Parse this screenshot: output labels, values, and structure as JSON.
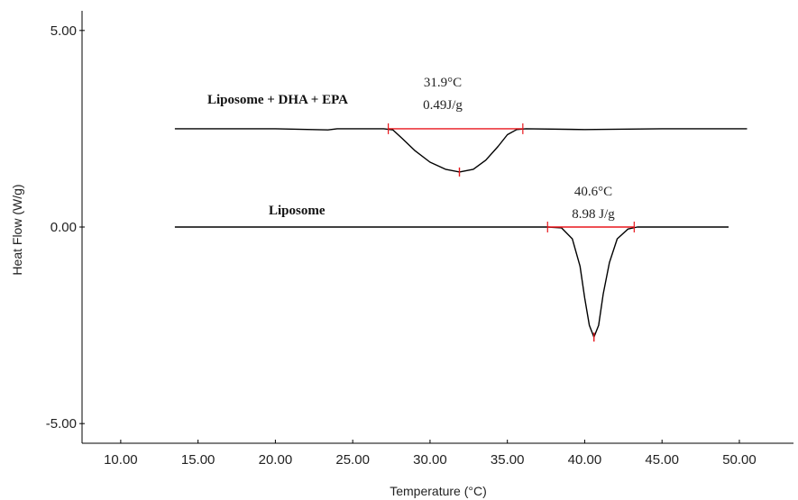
{
  "chart_data": {
    "type": "line",
    "title": "",
    "xlabel": "Temperature (°C)",
    "ylabel": "Heat Flow (W/g)",
    "xlim": [
      7.5,
      53.5
    ],
    "ylim": [
      -5.5,
      5.5
    ],
    "x_ticks": [
      "10.00",
      "15.00",
      "20.00",
      "25.00",
      "30.00",
      "35.00",
      "40.00",
      "45.00",
      "50.00"
    ],
    "x_tick_values": [
      10,
      15,
      20,
      25,
      30,
      35,
      40,
      45,
      50
    ],
    "y_ticks": [
      "5.00",
      "0.00",
      "-5.00"
    ],
    "y_tick_values": [
      5,
      0,
      -5
    ],
    "grid": false,
    "series": [
      {
        "name": "Liposome + DHA + EPA",
        "color": "#000000",
        "x": [
          13.5,
          20.0,
          23.4,
          24.0,
          27.0,
          27.6,
          28.2,
          29.0,
          30.0,
          31.0,
          31.9,
          32.8,
          33.6,
          34.4,
          35.0,
          35.6,
          36.2,
          40.0,
          45.0,
          50.5
        ],
        "y": [
          2.5,
          2.5,
          2.47,
          2.5,
          2.5,
          2.47,
          2.25,
          1.95,
          1.65,
          1.47,
          1.4,
          1.47,
          1.7,
          2.05,
          2.35,
          2.48,
          2.5,
          2.48,
          2.5,
          2.5
        ]
      },
      {
        "name": "Liposome",
        "color": "#000000",
        "x": [
          13.5,
          20.0,
          25.0,
          30.0,
          35.0,
          37.6,
          38.5,
          39.2,
          39.7,
          40.0,
          40.3,
          40.6,
          40.9,
          41.2,
          41.6,
          42.1,
          42.8,
          43.4,
          45.0,
          49.3
        ],
        "y": [
          0.0,
          0.0,
          0.0,
          0.0,
          0.0,
          0.0,
          -0.02,
          -0.3,
          -1.0,
          -1.8,
          -2.5,
          -2.8,
          -2.5,
          -1.7,
          -0.9,
          -0.3,
          -0.05,
          0.0,
          0.0,
          0.0
        ]
      }
    ],
    "annotations": [
      {
        "series": "Liposome + DHA + EPA",
        "peak_temperature": "31.9°C",
        "enthalpy": "0.49J/g",
        "peak_x": 31.9,
        "peak_y": 1.4,
        "baseline_start_x": 27.3,
        "baseline_end_x": 36.0,
        "baseline_y": 2.5
      },
      {
        "series": "Liposome",
        "peak_temperature": "40.6°C",
        "enthalpy": "8.98 J/g",
        "peak_x": 40.6,
        "peak_y": -2.8,
        "baseline_start_x": 37.6,
        "baseline_end_x": 43.2,
        "baseline_y": 0.0
      }
    ],
    "colors": {
      "curve": "#000000",
      "baseline": "#e8161c",
      "axis": "#000000"
    }
  }
}
